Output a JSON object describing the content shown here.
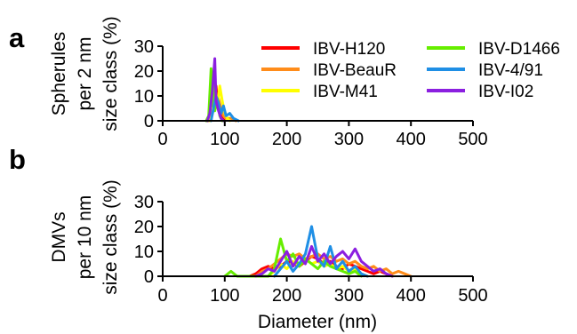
{
  "chart_data": [
    {
      "panel": "a",
      "type": "line",
      "ylabel": [
        "Spherules",
        "per 2 nm",
        "size class (%)"
      ],
      "xlabel": "",
      "xlim": [
        0,
        500
      ],
      "ylim": [
        0,
        30
      ],
      "xticks": [
        0,
        100,
        200,
        300,
        400,
        500
      ],
      "yticks": [
        0,
        10,
        20,
        30
      ],
      "legend": {
        "placement": "top-right",
        "columns": [
          [
            "IBV-H120",
            "IBV-BeauR",
            "IBV-M41"
          ],
          [
            "IBV-D1466",
            "IBV-4/91",
            "IBV-I02"
          ]
        ]
      },
      "series": [
        {
          "name": "IBV-H120",
          "color": "#ff0000",
          "points": [
            [
              72,
              0
            ],
            [
              76,
              2
            ],
            [
              80,
              5
            ],
            [
              84,
              10
            ],
            [
              86,
              14
            ],
            [
              88,
              8
            ],
            [
              92,
              3
            ],
            [
              96,
              1
            ],
            [
              100,
              0
            ]
          ]
        },
        {
          "name": "IBV-BeauR",
          "color": "#ff8c1a",
          "points": [
            [
              74,
              0
            ],
            [
              78,
              3
            ],
            [
              82,
              7
            ],
            [
              86,
              10
            ],
            [
              90,
              9
            ],
            [
              94,
              5
            ],
            [
              98,
              2
            ],
            [
              102,
              1
            ],
            [
              110,
              1
            ],
            [
              118,
              0
            ]
          ]
        },
        {
          "name": "IBV-M41",
          "color": "#ffff00",
          "points": [
            [
              76,
              0
            ],
            [
              80,
              4
            ],
            [
              84,
              9
            ],
            [
              88,
              6
            ],
            [
              92,
              14
            ],
            [
              96,
              8
            ],
            [
              100,
              3
            ],
            [
              104,
              1
            ],
            [
              108,
              0
            ]
          ]
        },
        {
          "name": "IBV-D1466",
          "color": "#66ee00",
          "points": [
            [
              70,
              0
            ],
            [
              74,
              2
            ],
            [
              78,
              21
            ],
            [
              80,
              6
            ],
            [
              82,
              18
            ],
            [
              84,
              4
            ],
            [
              88,
              9
            ],
            [
              92,
              2
            ],
            [
              96,
              0
            ]
          ]
        },
        {
          "name": "IBV-4/91",
          "color": "#1f8fe5",
          "points": [
            [
              78,
              0
            ],
            [
              82,
              5
            ],
            [
              86,
              10
            ],
            [
              90,
              7
            ],
            [
              94,
              3
            ],
            [
              98,
              6
            ],
            [
              102,
              2
            ],
            [
              108,
              3
            ],
            [
              114,
              1
            ],
            [
              122,
              0
            ]
          ]
        },
        {
          "name": "IBV-I02",
          "color": "#8b1fe0",
          "points": [
            [
              72,
              0
            ],
            [
              76,
              3
            ],
            [
              80,
              12
            ],
            [
              84,
              25
            ],
            [
              86,
              8
            ],
            [
              90,
              4
            ],
            [
              94,
              1
            ],
            [
              98,
              0
            ]
          ]
        }
      ]
    },
    {
      "panel": "b",
      "type": "line",
      "ylabel": [
        "DMVs",
        "per 10 nm",
        "size class (%)"
      ],
      "xlabel": "Diameter (nm)",
      "xlim": [
        0,
        500
      ],
      "ylim": [
        0,
        30
      ],
      "xticks": [
        0,
        100,
        200,
        300,
        400,
        500
      ],
      "yticks": [
        0,
        10,
        20,
        30
      ],
      "series": [
        {
          "name": "IBV-H120",
          "color": "#ff0000",
          "points": [
            [
              140,
              0
            ],
            [
              150,
              1
            ],
            [
              160,
              3
            ],
            [
              170,
              4
            ],
            [
              180,
              3
            ],
            [
              190,
              4
            ],
            [
              200,
              6
            ],
            [
              210,
              5
            ],
            [
              220,
              4
            ],
            [
              230,
              6
            ],
            [
              240,
              8
            ],
            [
              250,
              7
            ],
            [
              260,
              5
            ],
            [
              270,
              6
            ],
            [
              280,
              4
            ],
            [
              290,
              3
            ],
            [
              300,
              5
            ],
            [
              310,
              4
            ],
            [
              320,
              3
            ],
            [
              330,
              2
            ],
            [
              340,
              1
            ],
            [
              350,
              2
            ],
            [
              360,
              1
            ],
            [
              370,
              0
            ]
          ]
        },
        {
          "name": "IBV-BeauR",
          "color": "#ff8c1a",
          "points": [
            [
              150,
              0
            ],
            [
              160,
              2
            ],
            [
              170,
              3
            ],
            [
              180,
              5
            ],
            [
              190,
              7
            ],
            [
              200,
              9
            ],
            [
              210,
              8
            ],
            [
              220,
              9
            ],
            [
              230,
              7
            ],
            [
              240,
              8
            ],
            [
              250,
              9
            ],
            [
              260,
              7
            ],
            [
              270,
              8
            ],
            [
              280,
              6
            ],
            [
              290,
              7
            ],
            [
              300,
              5
            ],
            [
              310,
              6
            ],
            [
              320,
              4
            ],
            [
              330,
              3
            ],
            [
              340,
              4
            ],
            [
              350,
              2
            ],
            [
              360,
              3
            ],
            [
              370,
              1
            ],
            [
              380,
              2
            ],
            [
              390,
              1
            ],
            [
              400,
              0
            ]
          ]
        },
        {
          "name": "IBV-M41",
          "color": "#ffff00",
          "points": [
            [
              170,
              0
            ],
            [
              180,
              2
            ],
            [
              190,
              5
            ],
            [
              200,
              3
            ],
            [
              210,
              6
            ],
            [
              220,
              4
            ],
            [
              230,
              7
            ],
            [
              240,
              5
            ],
            [
              250,
              6
            ],
            [
              260,
              4
            ],
            [
              270,
              5
            ],
            [
              280,
              3
            ],
            [
              290,
              4
            ],
            [
              300,
              2
            ],
            [
              310,
              3
            ],
            [
              320,
              1
            ],
            [
              330,
              0
            ]
          ]
        },
        {
          "name": "IBV-D1466",
          "color": "#66ee00",
          "points": [
            [
              100,
              0
            ],
            [
              110,
              2
            ],
            [
              120,
              0
            ],
            [
              170,
              0
            ],
            [
              180,
              3
            ],
            [
              190,
              15
            ],
            [
              200,
              6
            ],
            [
              210,
              9
            ],
            [
              220,
              4
            ],
            [
              230,
              7
            ],
            [
              240,
              5
            ],
            [
              250,
              3
            ],
            [
              260,
              6
            ],
            [
              270,
              4
            ],
            [
              280,
              3
            ],
            [
              290,
              2
            ],
            [
              300,
              1
            ],
            [
              310,
              2
            ],
            [
              320,
              0
            ]
          ]
        },
        {
          "name": "IBV-4/91",
          "color": "#1f8fe5",
          "points": [
            [
              180,
              0
            ],
            [
              190,
              3
            ],
            [
              200,
              6
            ],
            [
              210,
              2
            ],
            [
              220,
              5
            ],
            [
              230,
              9
            ],
            [
              240,
              20
            ],
            [
              250,
              7
            ],
            [
              260,
              4
            ],
            [
              270,
              12
            ],
            [
              280,
              3
            ],
            [
              290,
              6
            ],
            [
              300,
              2
            ],
            [
              310,
              4
            ],
            [
              320,
              1
            ],
            [
              330,
              0
            ]
          ]
        },
        {
          "name": "IBV-I02",
          "color": "#8b1fe0",
          "points": [
            [
              150,
              0
            ],
            [
              160,
              1
            ],
            [
              170,
              3
            ],
            [
              180,
              2
            ],
            [
              190,
              6
            ],
            [
              200,
              10
            ],
            [
              210,
              4
            ],
            [
              220,
              8
            ],
            [
              230,
              5
            ],
            [
              240,
              12
            ],
            [
              250,
              6
            ],
            [
              260,
              9
            ],
            [
              270,
              5
            ],
            [
              280,
              8
            ],
            [
              290,
              10
            ],
            [
              300,
              7
            ],
            [
              310,
              11
            ],
            [
              320,
              6
            ],
            [
              330,
              4
            ],
            [
              340,
              2
            ],
            [
              350,
              3
            ],
            [
              360,
              1
            ],
            [
              370,
              0
            ]
          ]
        }
      ]
    }
  ]
}
